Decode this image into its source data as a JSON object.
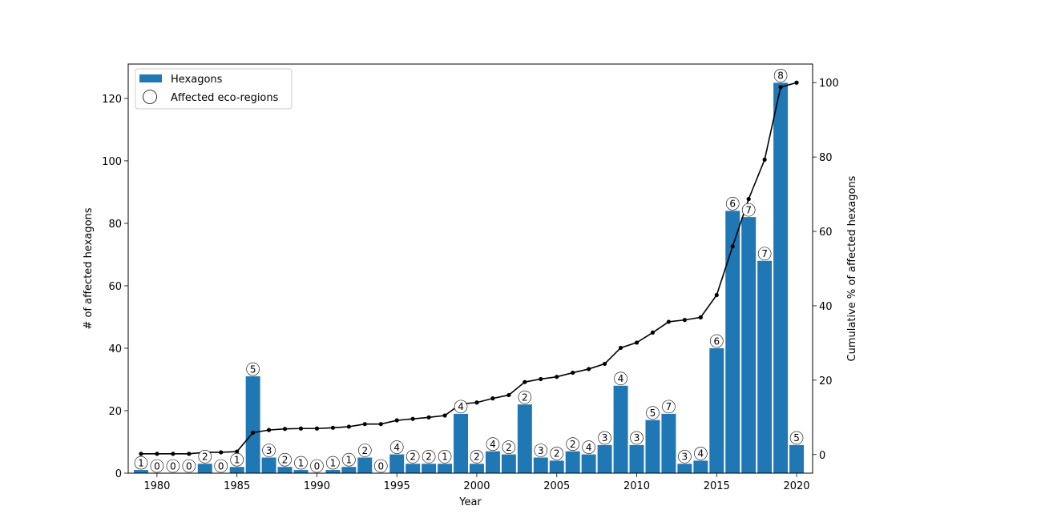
{
  "chart_data": {
    "type": "bar",
    "xlabel": "Year",
    "ylabel": "# of affected hexagons",
    "y2label": "Cumulative % of affected hexagons",
    "x_ticks": [
      "1980",
      "1985",
      "1990",
      "1995",
      "2000",
      "2005",
      "2010",
      "2015",
      "2020"
    ],
    "y_ticks": [
      "0",
      "20",
      "40",
      "60",
      "80",
      "100",
      "120"
    ],
    "y2_ticks": [
      "0",
      "20",
      "40",
      "60",
      "80",
      "100"
    ],
    "xlim": [
      1978.2,
      2021.0
    ],
    "ylim": [
      0,
      131
    ],
    "y2lim": [
      -5,
      105
    ],
    "legend": {
      "position": "upper-left",
      "bar_label": "Hexagons",
      "marker_label": "Affected eco-regions"
    },
    "colors": {
      "bar": "#1f77b4",
      "line": "#000000",
      "marker_edge": "#000000",
      "marker_face": "#ffffff"
    },
    "years": [
      1979,
      1980,
      1981,
      1982,
      1983,
      1984,
      1985,
      1986,
      1987,
      1988,
      1989,
      1990,
      1991,
      1992,
      1993,
      1994,
      1995,
      1996,
      1997,
      1998,
      1999,
      2000,
      2001,
      2002,
      2003,
      2004,
      2005,
      2006,
      2007,
      2008,
      2009,
      2010,
      2011,
      2012,
      2013,
      2014,
      2015,
      2016,
      2017,
      2018,
      2019,
      2020
    ],
    "series": [
      {
        "name": "Hexagons",
        "values": [
          1,
          0,
          0,
          0,
          3,
          0,
          2,
          31,
          5,
          2,
          1,
          0,
          1,
          2,
          5,
          0,
          6,
          3,
          3,
          3,
          19,
          3,
          7,
          6,
          22,
          5,
          4,
          7,
          6,
          9,
          28,
          9,
          17,
          19,
          3,
          4,
          40,
          84,
          82,
          68,
          125,
          9
        ]
      },
      {
        "name": "Affected eco-regions",
        "values": [
          1,
          0,
          0,
          0,
          2,
          0,
          1,
          5,
          3,
          2,
          1,
          0,
          1,
          1,
          2,
          0,
          4,
          2,
          2,
          1,
          4,
          2,
          4,
          2,
          2,
          3,
          2,
          2,
          4,
          3,
          4,
          3,
          5,
          7,
          3,
          4,
          6,
          6,
          7,
          7,
          8,
          5
        ]
      },
      {
        "name": "Cumulative %",
        "values": [
          0.2,
          0.2,
          0.2,
          0.2,
          0.6,
          0.6,
          0.8,
          5.9,
          6.6,
          6.9,
          7.0,
          7.0,
          7.2,
          7.5,
          8.2,
          8.2,
          9.2,
          9.6,
          10.0,
          10.5,
          13.6,
          14.0,
          15.1,
          16.0,
          19.5,
          20.3,
          20.9,
          22.0,
          23.0,
          24.4,
          28.7,
          30.1,
          32.8,
          35.7,
          36.2,
          36.9,
          42.9,
          56.0,
          68.7,
          79.3,
          98.8,
          100.0
        ]
      }
    ]
  }
}
